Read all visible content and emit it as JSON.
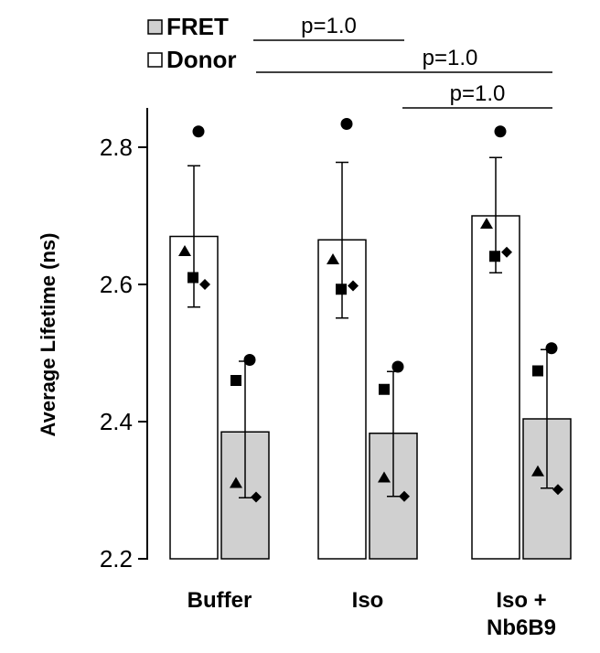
{
  "chart_data": {
    "type": "bar",
    "ylabel": "Average Lifetime (ns)",
    "ylim": [
      2.2,
      2.85
    ],
    "yticks": [
      "2.2",
      "2.4",
      "2.6",
      "2.8"
    ],
    "ytick_values": [
      2.2,
      2.4,
      2.6,
      2.8
    ],
    "categories": [
      {
        "label_lines": [
          "Buffer"
        ]
      },
      {
        "label_lines": [
          "Iso"
        ]
      },
      {
        "label_lines": [
          "Iso +",
          "Nb6B9"
        ]
      }
    ],
    "series": [
      {
        "name": "Donor",
        "fill": "#ffffff",
        "values": [
          2.67,
          2.665,
          2.7
        ],
        "error_high": [
          2.773,
          2.778,
          2.785
        ],
        "error_low": [
          2.567,
          2.551,
          2.617
        ],
        "points": [
          {
            "triangle": 2.648,
            "square": 2.61,
            "diamond": 2.6,
            "circle": 2.823
          },
          {
            "triangle": 2.636,
            "square": 2.593,
            "diamond": 2.598,
            "circle": 2.834
          },
          {
            "triangle": 2.688,
            "square": 2.641,
            "diamond": 2.647,
            "circle": 2.823
          }
        ]
      },
      {
        "name": "FRET",
        "fill": "#d0d0d0",
        "values": [
          2.385,
          2.383,
          2.404
        ],
        "error_high": [
          2.488,
          2.473,
          2.505
        ],
        "error_low": [
          2.289,
          2.291,
          2.303
        ],
        "points": [
          {
            "triangle": 2.31,
            "square": 2.46,
            "diamond": 2.29,
            "circle": 2.49
          },
          {
            "triangle": 2.318,
            "square": 2.447,
            "diamond": 2.291,
            "circle": 2.48
          },
          {
            "triangle": 2.327,
            "square": 2.474,
            "diamond": 2.301,
            "circle": 2.507
          }
        ]
      }
    ],
    "legend": {
      "placement": "top-left",
      "items": [
        {
          "label": "FRET",
          "fill": "#d0d0d0"
        },
        {
          "label": "Donor",
          "fill": "#ffffff"
        }
      ]
    },
    "significance": [
      {
        "text": "p=1.0",
        "from_category": 0,
        "to_category": 1
      },
      {
        "text": "p=1.0",
        "from_category": 0,
        "to_category": 2
      },
      {
        "text": "p=1.0",
        "from_category": 1,
        "to_category": 2
      }
    ],
    "grid": false
  }
}
